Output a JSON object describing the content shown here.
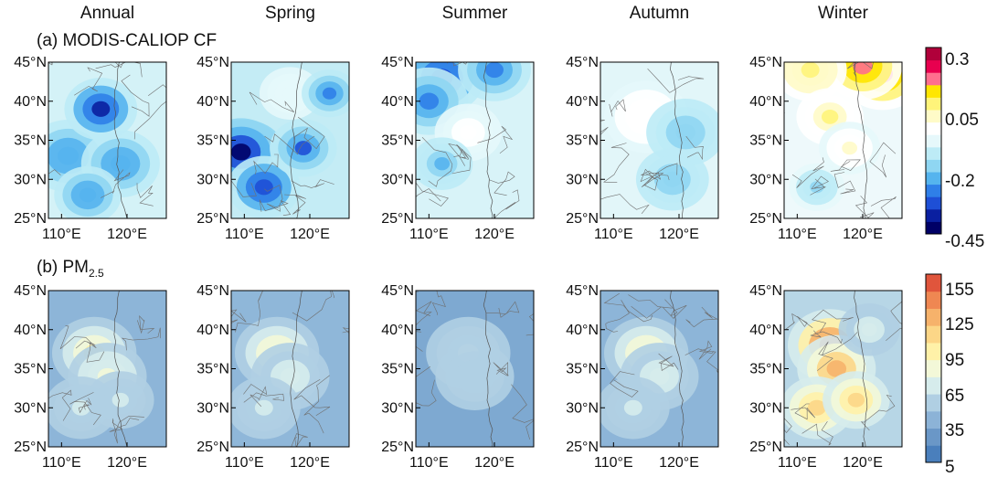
{
  "chart_data": {
    "type": "heatmap",
    "season_titles": [
      "Annual",
      "Spring",
      "Summer",
      "Autumn",
      "Winter"
    ],
    "x_ticks": [
      "110°E",
      "120°E"
    ],
    "y_ticks": [
      "45°N",
      "40°N",
      "35°N",
      "30°N",
      "25°N"
    ],
    "lon_range": [
      108,
      126
    ],
    "lat_range": [
      25,
      45
    ],
    "rows": [
      {
        "title_main": "(a) MODIS-CALIOP CF",
        "title_sub": "",
        "colorbar": {
          "tick_labels": [
            "0.3",
            "0.05",
            "-0.2",
            "-0.45"
          ],
          "colors": [
            "#000066",
            "#0a1fa0",
            "#1e4fd6",
            "#2f7fe8",
            "#55b4ee",
            "#8fd6f2",
            "#bdebf6",
            "#e6f8fb",
            "#ffffff",
            "#fffbc8",
            "#fff47a",
            "#ffe600",
            "#ff6f8e",
            "#e8004f",
            "#b0003a"
          ]
        },
        "panels": [
          {
            "season": "Annual",
            "background": "#d4f2f7",
            "blobs": [
              {
                "lon": 111,
                "lat": 33,
                "v": 0.25
              },
              {
                "lon": 119,
                "lat": 32,
                "v": 0.25
              },
              {
                "lon": 116,
                "lat": 39,
                "v": 0.08
              },
              {
                "lon": 114,
                "lat": 28,
                "v": 0.25
              }
            ]
          },
          {
            "season": "Spring",
            "background": "#c4ecf5",
            "blobs": [
              {
                "lon": 110,
                "lat": 33,
                "v": 0.0
              },
              {
                "lon": 109.5,
                "lat": 33.5,
                "v": 0.0
              },
              {
                "lon": 113,
                "lat": 29,
                "v": 0.12
              },
              {
                "lon": 119,
                "lat": 34,
                "v": 0.17
              },
              {
                "lon": 117,
                "lat": 41,
                "v": 0.5
              },
              {
                "lon": 123,
                "lat": 41,
                "v": 0.22
              }
            ]
          },
          {
            "season": "Summer",
            "background": "#d8f3f8",
            "blobs": [
              {
                "lon": 112,
                "lat": 43,
                "v": 0.14
              },
              {
                "lon": 110,
                "lat": 40,
                "v": 0.2
              },
              {
                "lon": 120,
                "lat": 44,
                "v": 0.22
              },
              {
                "lon": 116,
                "lat": 36,
                "v": 0.55
              },
              {
                "lon": 112,
                "lat": 32,
                "v": 0.3
              }
            ]
          },
          {
            "season": "Autumn",
            "background": "#e2f6f9",
            "blobs": [
              {
                "lon": 115,
                "lat": 38,
                "v": 0.6
              },
              {
                "lon": 121,
                "lat": 36,
                "v": 0.34
              },
              {
                "lon": 119,
                "lat": 30,
                "v": 0.34
              }
            ]
          },
          {
            "season": "Winter",
            "background": "#eef9fb",
            "blobs": [
              {
                "lon": 123,
                "lat": 43.5,
                "v": 0.92
              },
              {
                "lon": 120,
                "lat": 44.5,
                "v": 0.88
              },
              {
                "lon": 112,
                "lat": 44,
                "v": 0.72
              },
              {
                "lon": 115,
                "lat": 38,
                "v": 0.7
              },
              {
                "lon": 118,
                "lat": 34,
                "v": 0.64
              },
              {
                "lon": 113,
                "lat": 29,
                "v": 0.36
              }
            ]
          }
        ]
      },
      {
        "title_main": "(b) PM",
        "title_sub": "2.5",
        "colorbar": {
          "tick_labels": [
            "155",
            "125",
            "95",
            "65",
            "35",
            "5"
          ],
          "colors": [
            "#4a7fbc",
            "#6a97c7",
            "#8cb3d7",
            "#b0cfe3",
            "#d6ecec",
            "#f3f8d8",
            "#fff1a8",
            "#fcd687",
            "#f6b26b",
            "#ef8752",
            "#e0553c"
          ]
        },
        "panels": [
          {
            "season": "Annual",
            "background": "#8db5d8",
            "blobs": [
              {
                "lon": 115,
                "lat": 37,
                "v": 0.58
              },
              {
                "lon": 117,
                "lat": 34,
                "v": 0.45
              },
              {
                "lon": 113,
                "lat": 30,
                "v": 0.38
              },
              {
                "lon": 119,
                "lat": 31,
                "v": 0.36
              }
            ]
          },
          {
            "season": "Spring",
            "background": "#8fb7d9",
            "blobs": [
              {
                "lon": 115,
                "lat": 37,
                "v": 0.52
              },
              {
                "lon": 117,
                "lat": 34,
                "v": 0.44
              },
              {
                "lon": 113,
                "lat": 30,
                "v": 0.36
              }
            ]
          },
          {
            "season": "Summer",
            "background": "#7ea9d1",
            "blobs": [
              {
                "lon": 116,
                "lat": 37,
                "v": 0.38
              },
              {
                "lon": 117,
                "lat": 34,
                "v": 0.32
              }
            ]
          },
          {
            "season": "Autumn",
            "background": "#8db5d8",
            "blobs": [
              {
                "lon": 115,
                "lat": 37,
                "v": 0.54
              },
              {
                "lon": 117,
                "lat": 34,
                "v": 0.44
              },
              {
                "lon": 113,
                "lat": 30,
                "v": 0.36
              }
            ]
          },
          {
            "season": "Winter",
            "background": "#b7d6e6",
            "blobs": [
              {
                "lon": 115,
                "lat": 38,
                "v": 0.95
              },
              {
                "lon": 116,
                "lat": 35,
                "v": 0.8
              },
              {
                "lon": 113,
                "lat": 30,
                "v": 0.72
              },
              {
                "lon": 119,
                "lat": 31,
                "v": 0.7
              },
              {
                "lon": 121,
                "lat": 40,
                "v": 0.42
              }
            ]
          }
        ]
      }
    ]
  }
}
